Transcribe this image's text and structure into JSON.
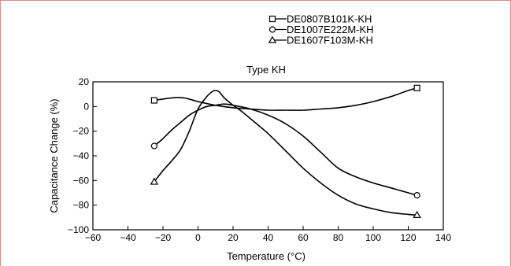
{
  "chart_data": {
    "type": "line",
    "title": "Type KH",
    "xlabel": "Temperature (°C)",
    "ylabel": "Capacitance Change (%)",
    "xlim": [
      -60,
      140
    ],
    "ylim": [
      -100,
      20
    ],
    "xticks": [
      -60,
      -40,
      -20,
      0,
      20,
      40,
      60,
      80,
      100,
      120,
      140
    ],
    "yticks": [
      20,
      0,
      -20,
      -40,
      -60,
      -80,
      -100
    ],
    "xtick_labels": [
      "−60",
      "−40",
      "−20",
      "0",
      "20",
      "40",
      "60",
      "80",
      "100",
      "120",
      "140"
    ],
    "ytick_labels": [
      "20",
      "0",
      "−20",
      "−40",
      "−60",
      "−80",
      "−100"
    ],
    "grid": false,
    "legend_position": "top-right, above title",
    "series": [
      {
        "name": "DE0807B101K-KH",
        "marker": "square",
        "x": [
          -25,
          -15,
          -8,
          0,
          10,
          20,
          30,
          40,
          50,
          60,
          70,
          80,
          90,
          100,
          110,
          120,
          125
        ],
        "y": [
          5,
          7,
          7,
          4,
          1,
          -1,
          -2,
          -3,
          -3,
          -3,
          -2,
          -1,
          1,
          4,
          8,
          13,
          15
        ]
      },
      {
        "name": "DE1007E222M-KH",
        "marker": "circle",
        "x": [
          -25,
          -20,
          -15,
          -10,
          -5,
          0,
          5,
          10,
          15,
          20,
          30,
          40,
          50,
          60,
          70,
          80,
          90,
          100,
          110,
          120,
          125
        ],
        "y": [
          -32,
          -26,
          -19,
          -13,
          -7,
          -3,
          0,
          1,
          2,
          1,
          -2,
          -7,
          -14,
          -24,
          -37,
          -50,
          -57,
          -62,
          -66,
          -70,
          -72
        ]
      },
      {
        "name": "DE1607F103M-KH",
        "marker": "triangle",
        "x": [
          -25,
          -20,
          -15,
          -10,
          -5,
          0,
          5,
          8,
          10,
          12,
          15,
          20,
          25,
          30,
          40,
          50,
          60,
          70,
          80,
          90,
          100,
          110,
          120,
          125
        ],
        "y": [
          -61,
          -52,
          -44,
          -35,
          -20,
          -2,
          8,
          12,
          13,
          12,
          7,
          1,
          -4,
          -10,
          -22,
          -36,
          -50,
          -62,
          -72,
          -79,
          -83,
          -86,
          -87.5,
          -88
        ]
      }
    ]
  }
}
